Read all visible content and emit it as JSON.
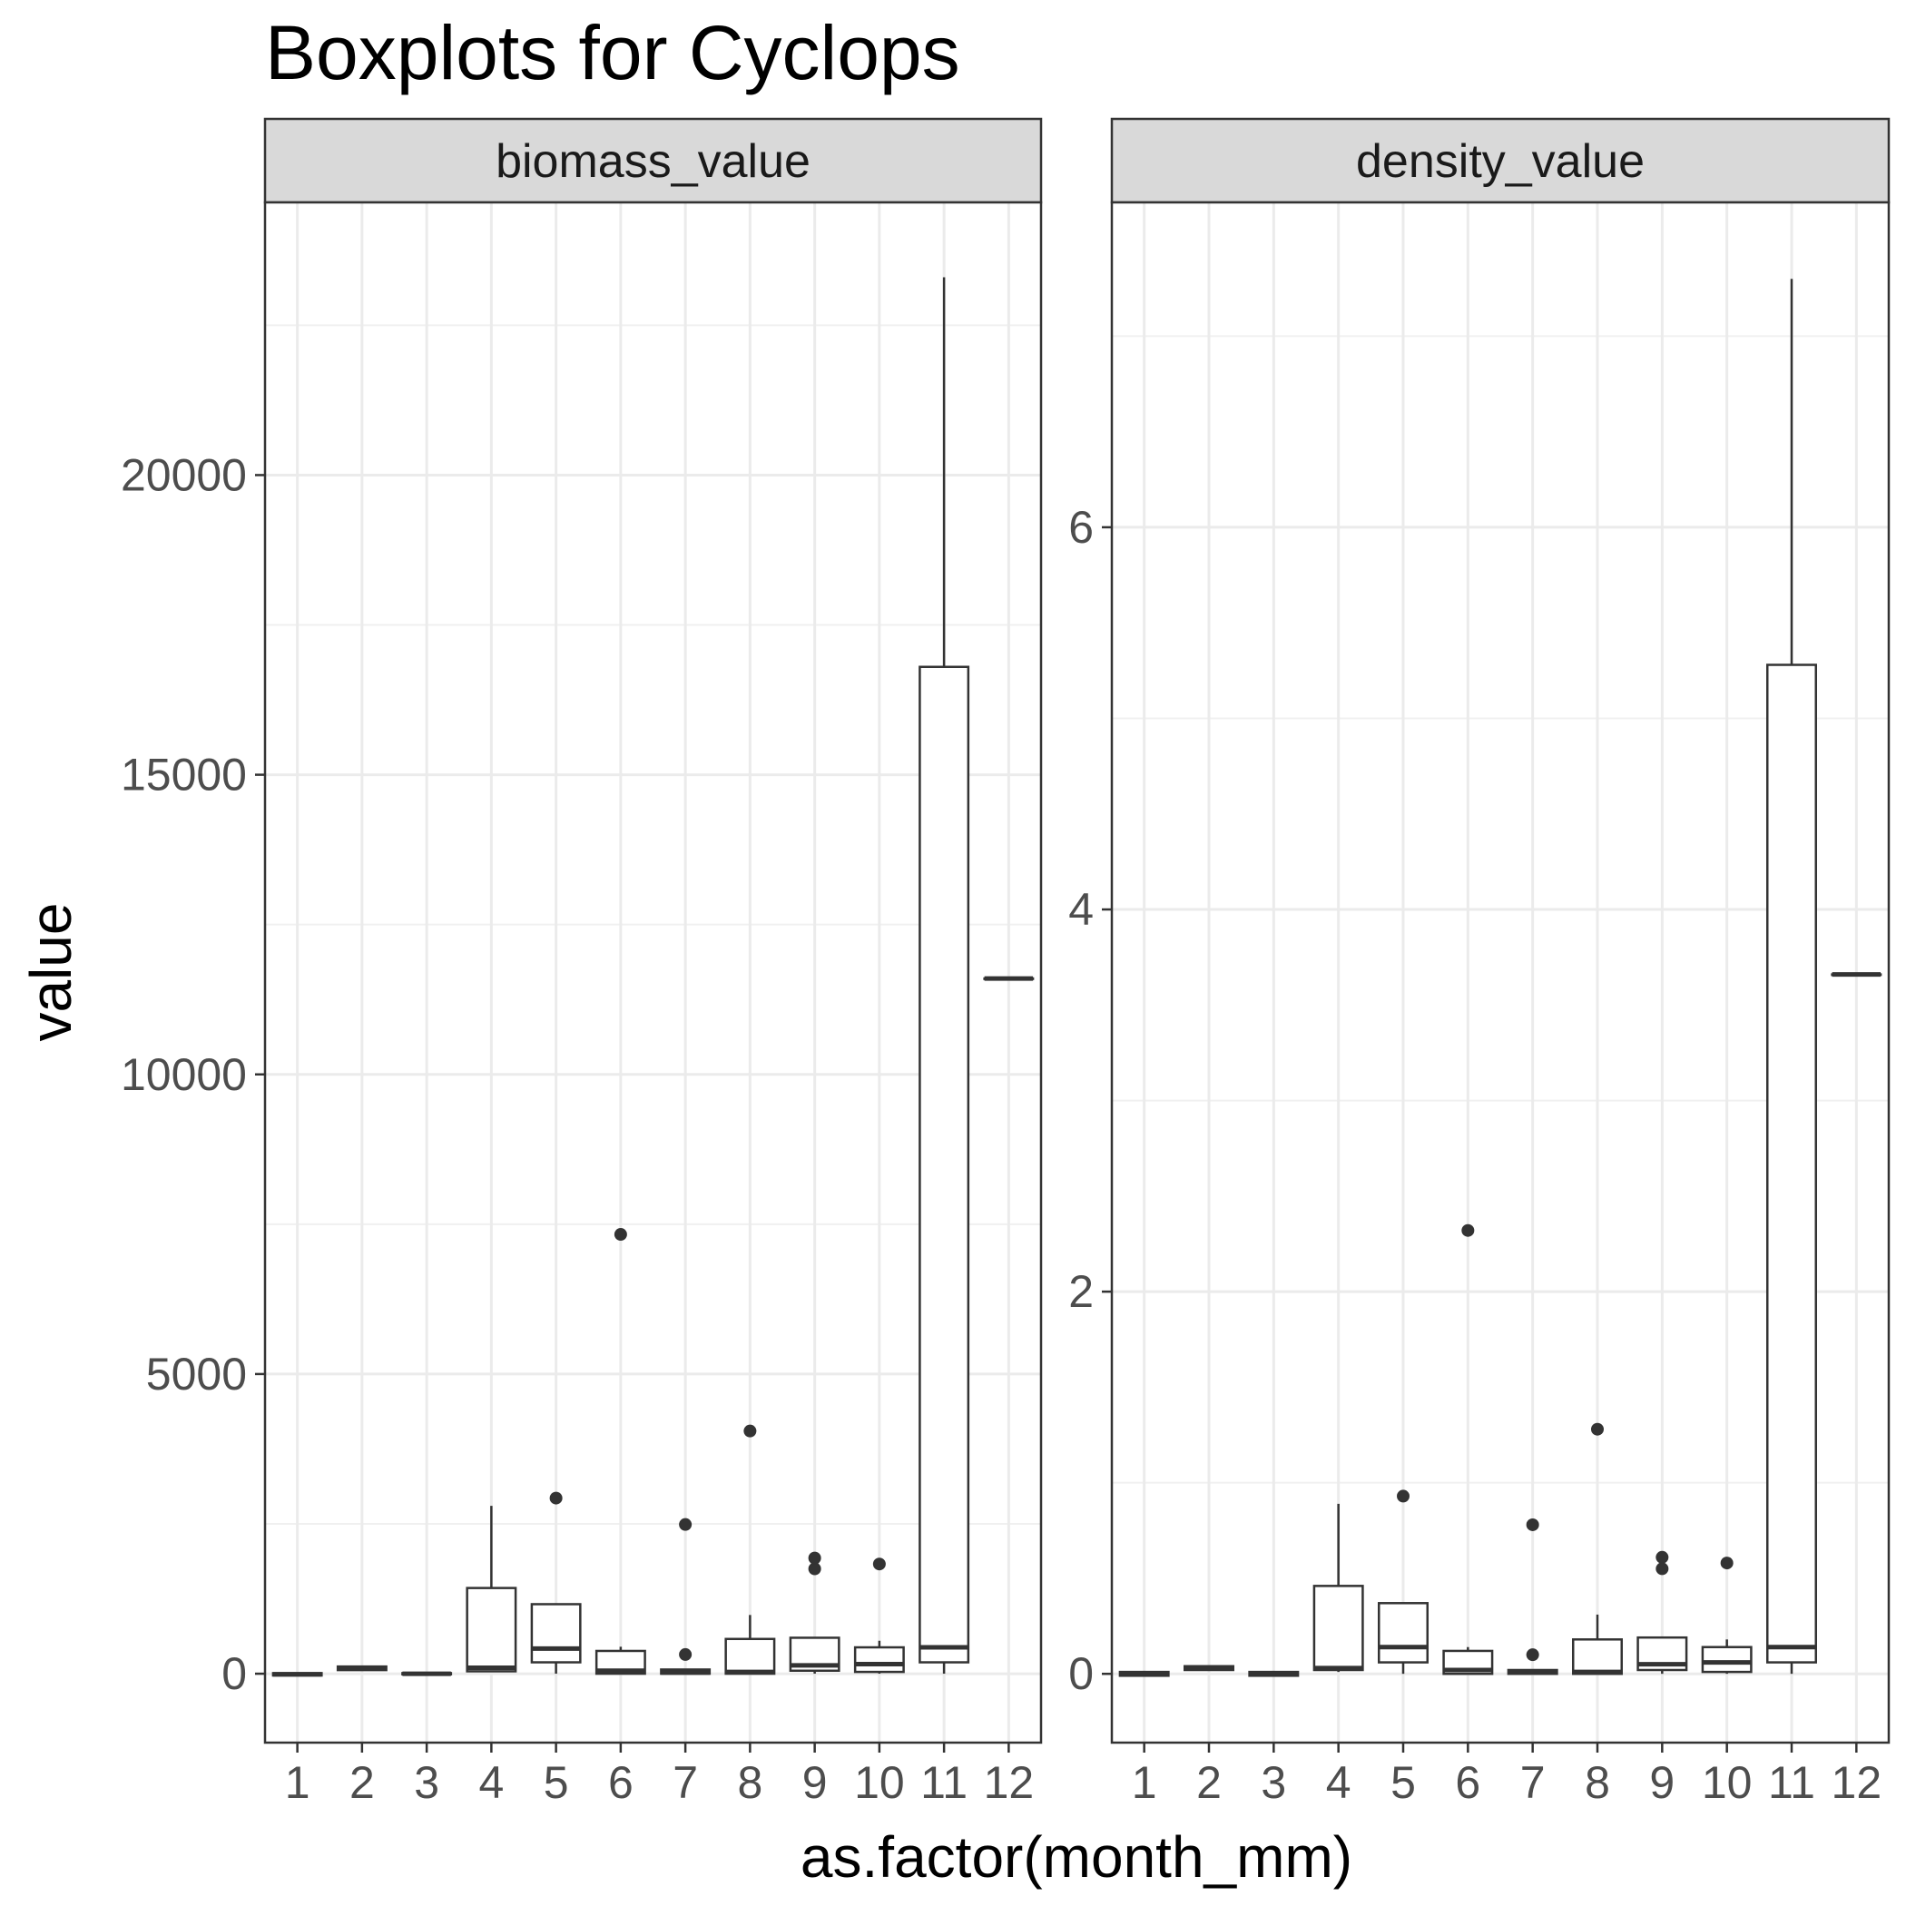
{
  "chart_data": {
    "type": "boxplot",
    "title": "Boxplots for Cyclops",
    "xlabel": "as.factor(month_mm)",
    "ylabel": "value",
    "categories": [
      "1",
      "2",
      "3",
      "4",
      "5",
      "6",
      "7",
      "8",
      "9",
      "10",
      "11",
      "12"
    ],
    "grid": true,
    "facets": [
      {
        "label": "biomass_value",
        "ylim": [
          -1150,
          24550
        ],
        "yticks": [
          0,
          5000,
          10000,
          15000,
          20000
        ],
        "ytick_labels": [
          "0",
          "5000",
          "10000",
          "15000",
          "20000"
        ],
        "boxes": [
          {
            "x": "1",
            "whislo": -30,
            "q1": -30,
            "med": -10,
            "q3": 10,
            "whishi": 10,
            "fliers": []
          },
          {
            "x": "2",
            "whislo": 60,
            "q1": 60,
            "med": 90,
            "q3": 120,
            "whishi": 120,
            "fliers": []
          },
          {
            "x": "3",
            "whislo": -10,
            "q1": -10,
            "med": 0,
            "q3": 10,
            "whishi": 10,
            "fliers": []
          },
          {
            "x": "4",
            "whislo": 30,
            "q1": 40,
            "med": 100,
            "q3": 1430,
            "whishi": 2800,
            "fliers": []
          },
          {
            "x": "5",
            "whislo": 0,
            "q1": 190,
            "med": 420,
            "q3": 1160,
            "whishi": 1160,
            "fliers": [
              2930
            ]
          },
          {
            "x": "6",
            "whislo": 0,
            "q1": 0,
            "med": 50,
            "q3": 380,
            "whishi": 450,
            "fliers": [
              7330
            ]
          },
          {
            "x": "7",
            "whislo": 0,
            "q1": 0,
            "med": 20,
            "q3": 70,
            "whishi": 70,
            "fliers": [
              320,
              2490
            ]
          },
          {
            "x": "8",
            "whislo": 0,
            "q1": 0,
            "med": 30,
            "q3": 580,
            "whishi": 980,
            "fliers": [
              4050
            ]
          },
          {
            "x": "9",
            "whislo": 0,
            "q1": 50,
            "med": 140,
            "q3": 600,
            "whishi": 600,
            "fliers": [
              1750,
              1930
            ]
          },
          {
            "x": "10",
            "whislo": 0,
            "q1": 30,
            "med": 160,
            "q3": 440,
            "whishi": 550,
            "fliers": [
              1830
            ]
          },
          {
            "x": "11",
            "whislo": 0,
            "q1": 190,
            "med": 440,
            "q3": 16800,
            "whishi": 23300,
            "fliers": []
          },
          {
            "x": "12",
            "whislo": 11600,
            "q1": 11600,
            "med": 11600,
            "q3": 11600,
            "whishi": 11600,
            "fliers": []
          }
        ]
      },
      {
        "label": "density_value",
        "ylim": [
          -0.36,
          7.7
        ],
        "yticks": [
          0,
          2,
          4,
          6
        ],
        "ytick_labels": [
          "0",
          "2",
          "4",
          "6"
        ],
        "boxes": [
          {
            "x": "1",
            "whislo": -0.01,
            "q1": -0.01,
            "med": 0.0,
            "q3": 0.01,
            "whishi": 0.01,
            "fliers": []
          },
          {
            "x": "2",
            "whislo": 0.02,
            "q1": 0.02,
            "med": 0.03,
            "q3": 0.04,
            "whishi": 0.04,
            "fliers": []
          },
          {
            "x": "3",
            "whislo": -0.01,
            "q1": -0.01,
            "med": 0.0,
            "q3": 0.01,
            "whishi": 0.01,
            "fliers": []
          },
          {
            "x": "4",
            "whislo": 0.01,
            "q1": 0.02,
            "med": 0.03,
            "q3": 0.46,
            "whishi": 0.89,
            "fliers": []
          },
          {
            "x": "5",
            "whislo": 0.0,
            "q1": 0.06,
            "med": 0.14,
            "q3": 0.37,
            "whishi": 0.37,
            "fliers": [
              0.93
            ]
          },
          {
            "x": "6",
            "whislo": 0.0,
            "q1": 0.0,
            "med": 0.02,
            "q3": 0.12,
            "whishi": 0.14,
            "fliers": [
              2.32
            ]
          },
          {
            "x": "7",
            "whislo": 0.0,
            "q1": 0.0,
            "med": 0.01,
            "q3": 0.02,
            "whishi": 0.02,
            "fliers": [
              0.1,
              0.78
            ]
          },
          {
            "x": "8",
            "whislo": 0.0,
            "q1": 0.0,
            "med": 0.01,
            "q3": 0.18,
            "whishi": 0.31,
            "fliers": [
              1.28
            ]
          },
          {
            "x": "9",
            "whislo": 0.0,
            "q1": 0.02,
            "med": 0.05,
            "q3": 0.19,
            "whishi": 0.19,
            "fliers": [
              0.55,
              0.61
            ]
          },
          {
            "x": "10",
            "whislo": 0.0,
            "q1": 0.01,
            "med": 0.06,
            "q3": 0.14,
            "whishi": 0.18,
            "fliers": [
              0.58
            ]
          },
          {
            "x": "11",
            "whislo": 0.0,
            "q1": 0.06,
            "med": 0.14,
            "q3": 5.28,
            "whishi": 7.3,
            "fliers": []
          },
          {
            "x": "12",
            "whislo": 3.66,
            "q1": 3.66,
            "med": 3.66,
            "q3": 3.66,
            "whishi": 3.66,
            "fliers": []
          }
        ]
      }
    ]
  }
}
